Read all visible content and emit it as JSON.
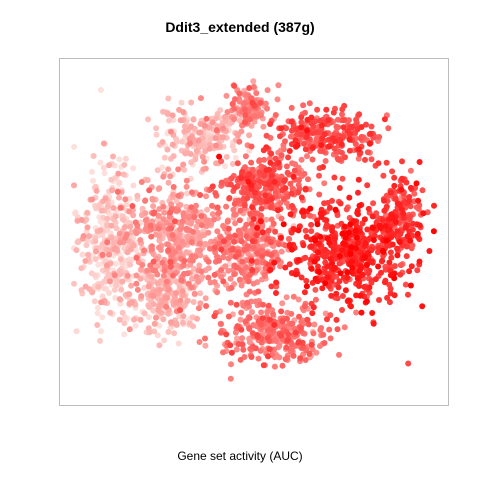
{
  "chart_data": {
    "type": "scatter",
    "title": "Ddit3_extended (387g)",
    "xlabel": "Gene set activity (AUC)",
    "ylabel": "",
    "color_low": "#fde0dc",
    "color_high": "#ff0000",
    "axes_visible": false,
    "grid": false,
    "clusters": [
      {
        "cx": 0.1,
        "cy": 0.54,
        "rx": 0.08,
        "ry": 0.22,
        "level": 0.08,
        "n": 360
      },
      {
        "cx": 0.25,
        "cy": 0.7,
        "rx": 0.09,
        "ry": 0.12,
        "level": 0.14,
        "n": 260
      },
      {
        "cx": 0.29,
        "cy": 0.5,
        "rx": 0.12,
        "ry": 0.15,
        "level": 0.3,
        "n": 420
      },
      {
        "cx": 0.36,
        "cy": 0.2,
        "rx": 0.11,
        "ry": 0.09,
        "level": 0.16,
        "n": 200
      },
      {
        "cx": 0.53,
        "cy": 0.35,
        "rx": 0.11,
        "ry": 0.08,
        "level": 0.58,
        "n": 260
      },
      {
        "cx": 0.49,
        "cy": 0.56,
        "rx": 0.09,
        "ry": 0.12,
        "level": 0.42,
        "n": 300
      },
      {
        "cx": 0.76,
        "cy": 0.56,
        "rx": 0.16,
        "ry": 0.15,
        "level": 0.78,
        "n": 520
      },
      {
        "cx": 0.7,
        "cy": 0.2,
        "rx": 0.13,
        "ry": 0.07,
        "level": 0.62,
        "n": 260
      },
      {
        "cx": 0.55,
        "cy": 0.82,
        "rx": 0.14,
        "ry": 0.09,
        "level": 0.46,
        "n": 300
      },
      {
        "cx": 0.49,
        "cy": 0.11,
        "rx": 0.05,
        "ry": 0.06,
        "level": 0.4,
        "n": 120
      },
      {
        "cx": 0.91,
        "cy": 0.44,
        "rx": 0.05,
        "ry": 0.12,
        "level": 0.7,
        "n": 140
      }
    ]
  }
}
